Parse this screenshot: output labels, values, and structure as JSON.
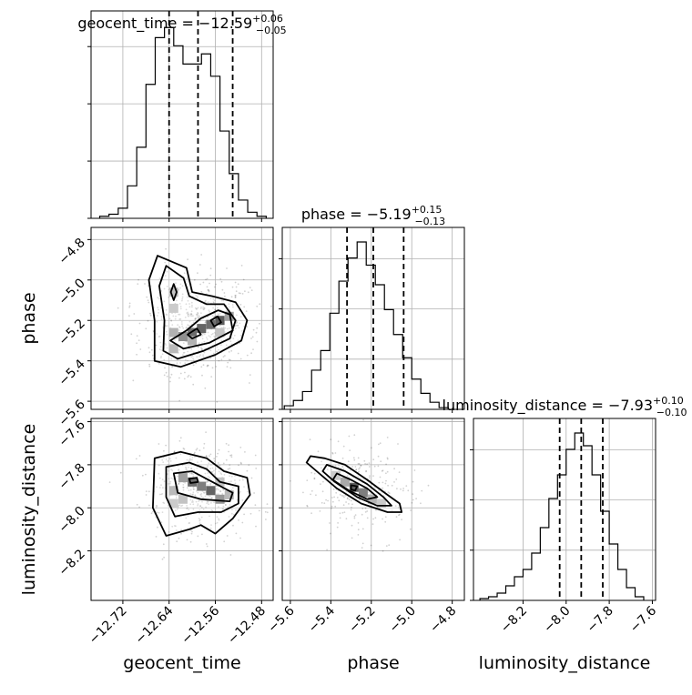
{
  "chart_data": {
    "type": "corner",
    "parameters": [
      "geocent_time",
      "phase",
      "luminosity_distance"
    ],
    "grid": true,
    "panel_titles": {
      "geocent_time": {
        "prefix": "geocent_time = −12.59",
        "sup": "+0.06",
        "sub": "−0.05"
      },
      "phase": {
        "prefix": "phase = −5.19",
        "sup": "+0.15",
        "sub": "−0.13"
      },
      "luminosity_distance": {
        "prefix": "luminosity_distance = −7.93",
        "sup": "+0.10",
        "sub": "−0.10"
      }
    },
    "axis_labels": {
      "x": [
        "geocent_time",
        "phase",
        "luminosity_distance"
      ],
      "y": [
        "phase",
        "luminosity_distance"
      ]
    },
    "axes": {
      "geocent_time": {
        "range": [
          -12.775,
          -12.46
        ],
        "ticks": [
          -12.72,
          -12.64,
          -12.56,
          -12.48
        ],
        "tick_labels": [
          "−12.72",
          "−12.64",
          "−12.56",
          "−12.48"
        ]
      },
      "phase": {
        "range": [
          -5.64,
          -4.74
        ],
        "ticks": [
          -5.6,
          -5.4,
          -5.2,
          -5.0,
          -4.8
        ],
        "tick_labels": [
          "−5.6",
          "−5.4",
          "−5.2",
          "−5.0",
          "−4.8"
        ]
      },
      "luminosity_distance": {
        "range": [
          -8.43,
          -7.585
        ],
        "ticks": [
          -8.2,
          -8.0,
          -7.8,
          -7.6
        ],
        "tick_labels": [
          "−8.2",
          "−8.0",
          "−7.8",
          "−7.6"
        ]
      }
    },
    "histograms": [
      {
        "parameter": "geocent_time",
        "bin_edges": [
          -12.76,
          -12.744,
          -12.728,
          -12.712,
          -12.696,
          -12.68,
          -12.664,
          -12.648,
          -12.632,
          -12.616,
          -12.6,
          -12.584,
          -12.568,
          -12.552,
          -12.536,
          -12.52,
          -12.504,
          -12.488,
          -12.472
        ],
        "counts": [
          1,
          2,
          5,
          16,
          35,
          66,
          89,
          94,
          85,
          76,
          76,
          81,
          70,
          43,
          22,
          9,
          3,
          1
        ],
        "quantiles": [
          -12.64,
          -12.59,
          -12.53
        ]
      },
      {
        "parameter": "phase",
        "bin_edges": [
          -5.63,
          -5.585,
          -5.54,
          -5.495,
          -5.45,
          -5.405,
          -5.36,
          -5.315,
          -5.27,
          -5.225,
          -5.18,
          -5.135,
          -5.09,
          -5.045,
          -5.0,
          -4.955,
          -4.91,
          -4.865,
          -4.82
        ],
        "counts": [
          2,
          5,
          10,
          22,
          33,
          54,
          72,
          85,
          94,
          81,
          70,
          56,
          42,
          29,
          17,
          9,
          4,
          1
        ],
        "quantiles": [
          -5.32,
          -5.19,
          -5.04
        ]
      },
      {
        "parameter": "luminosity_distance",
        "bin_edges": [
          -8.4,
          -8.36,
          -8.32,
          -8.28,
          -8.24,
          -8.2,
          -8.16,
          -8.12,
          -8.08,
          -8.04,
          -8.0,
          -7.96,
          -7.92,
          -7.88,
          -7.84,
          -7.8,
          -7.76,
          -7.72,
          -7.68,
          -7.64
        ],
        "counts": [
          1,
          2,
          4,
          8,
          13,
          17,
          26,
          40,
          56,
          69,
          83,
          92,
          85,
          69,
          49,
          31,
          17,
          7,
          2
        ],
        "quantiles": [
          -8.03,
          -7.93,
          -7.83
        ]
      }
    ],
    "pairs": [
      {
        "x": "geocent_time",
        "y": "phase",
        "density_cells": [
          [
            -12.632,
            -5.06,
            0.35
          ],
          [
            -12.632,
            -5.26,
            0.45
          ],
          [
            -12.632,
            -5.34,
            0.4
          ],
          [
            -12.616,
            -5.28,
            0.65
          ],
          [
            -12.6,
            -5.26,
            0.85
          ],
          [
            -12.584,
            -5.24,
            0.9
          ],
          [
            -12.568,
            -5.22,
            0.85
          ],
          [
            -12.552,
            -5.2,
            0.95
          ],
          [
            -12.536,
            -5.18,
            0.55
          ],
          [
            -12.6,
            -5.3,
            0.45
          ],
          [
            -12.632,
            -5.14,
            0.3
          ],
          [
            -12.552,
            -5.26,
            0.35
          ]
        ],
        "contours": [
          [
            [
              -12.66,
              -4.88
            ],
            [
              -12.61,
              -4.94
            ],
            [
              -12.6,
              -5.06
            ],
            [
              -12.565,
              -5.08
            ],
            [
              -12.525,
              -5.11
            ],
            [
              -12.505,
              -5.2
            ],
            [
              -12.515,
              -5.3
            ],
            [
              -12.56,
              -5.37
            ],
            [
              -12.62,
              -5.43
            ],
            [
              -12.665,
              -5.4
            ],
            [
              -12.665,
              -5.2
            ],
            [
              -12.675,
              -5.0
            ]
          ],
          [
            [
              -12.645,
              -4.93
            ],
            [
              -12.615,
              -4.99
            ],
            [
              -12.605,
              -5.08
            ],
            [
              -12.575,
              -5.12
            ],
            [
              -12.545,
              -5.12
            ],
            [
              -12.525,
              -5.2
            ],
            [
              -12.535,
              -5.29
            ],
            [
              -12.58,
              -5.35
            ],
            [
              -12.625,
              -5.39
            ],
            [
              -12.65,
              -5.35
            ],
            [
              -12.648,
              -5.2
            ],
            [
              -12.657,
              -5.03
            ]
          ],
          [
            [
              -12.61,
              -5.25
            ],
            [
              -12.585,
              -5.19
            ],
            [
              -12.555,
              -5.15
            ],
            [
              -12.535,
              -5.17
            ],
            [
              -12.53,
              -5.25
            ],
            [
              -12.57,
              -5.31
            ],
            [
              -12.615,
              -5.34
            ],
            [
              -12.638,
              -5.3
            ]
          ],
          [
            [
              -12.632,
              -5.02
            ],
            [
              -12.627,
              -5.06
            ],
            [
              -12.632,
              -5.1
            ],
            [
              -12.637,
              -5.06
            ]
          ],
          [
            [
              -12.608,
              -5.27
            ],
            [
              -12.592,
              -5.24
            ],
            [
              -12.585,
              -5.27
            ],
            [
              -12.6,
              -5.29
            ]
          ],
          [
            [
              -12.568,
              -5.2
            ],
            [
              -12.556,
              -5.18
            ],
            [
              -12.55,
              -5.21
            ],
            [
              -12.562,
              -5.23
            ]
          ]
        ]
      },
      {
        "x": "geocent_time",
        "y": "luminosity_distance",
        "density_cells": [
          [
            -12.616,
            -7.86,
            0.55
          ],
          [
            -12.6,
            -7.88,
            0.85
          ],
          [
            -12.584,
            -7.9,
            0.75
          ],
          [
            -12.568,
            -7.92,
            0.9
          ],
          [
            -12.552,
            -7.96,
            0.6
          ],
          [
            -12.632,
            -7.92,
            0.4
          ],
          [
            -12.632,
            -7.98,
            0.3
          ],
          [
            -12.552,
            -7.88,
            0.35
          ],
          [
            -12.536,
            -7.94,
            0.4
          ],
          [
            -12.616,
            -7.96,
            0.35
          ]
        ],
        "contours": [
          [
            [
              -12.665,
              -7.77
            ],
            [
              -12.62,
              -7.74
            ],
            [
              -12.575,
              -7.77
            ],
            [
              -12.545,
              -7.83
            ],
            [
              -12.505,
              -7.86
            ],
            [
              -12.5,
              -7.94
            ],
            [
              -12.53,
              -8.05
            ],
            [
              -12.56,
              -8.12
            ],
            [
              -12.585,
              -8.08
            ],
            [
              -12.605,
              -8.1
            ],
            [
              -12.645,
              -8.13
            ],
            [
              -12.668,
              -8.0
            ]
          ],
          [
            [
              -12.645,
              -7.81
            ],
            [
              -12.605,
              -7.79
            ],
            [
              -12.575,
              -7.82
            ],
            [
              -12.552,
              -7.88
            ],
            [
              -12.52,
              -7.9
            ],
            [
              -12.52,
              -7.98
            ],
            [
              -12.55,
              -8.02
            ],
            [
              -12.59,
              -8.02
            ],
            [
              -12.63,
              -8.04
            ],
            [
              -12.645,
              -7.95
            ]
          ],
          [
            [
              -12.632,
              -7.84
            ],
            [
              -12.6,
              -7.83
            ],
            [
              -12.565,
              -7.88
            ],
            [
              -12.53,
              -7.93
            ],
            [
              -12.535,
              -7.97
            ],
            [
              -12.585,
              -7.96
            ],
            [
              -12.625,
              -7.93
            ]
          ],
          [
            [
              -12.605,
              -7.865
            ],
            [
              -12.592,
              -7.86
            ],
            [
              -12.59,
              -7.88
            ],
            [
              -12.603,
              -7.885
            ]
          ]
        ]
      },
      {
        "x": "phase",
        "y": "luminosity_distance",
        "density_cells": [
          [
            -5.285,
            -7.905,
            0.95
          ],
          [
            -5.24,
            -7.93,
            0.75
          ],
          [
            -5.33,
            -7.88,
            0.5
          ],
          [
            -5.195,
            -7.96,
            0.45
          ],
          [
            -5.15,
            -7.98,
            0.3
          ],
          [
            -5.375,
            -7.85,
            0.3
          ]
        ],
        "contours": [
          [
            [
              -5.5,
              -7.76
            ],
            [
              -5.43,
              -7.77
            ],
            [
              -5.33,
              -7.8
            ],
            [
              -5.22,
              -7.87
            ],
            [
              -5.12,
              -7.94
            ],
            [
              -5.06,
              -7.98
            ],
            [
              -5.05,
              -8.02
            ],
            [
              -5.12,
              -8.02
            ],
            [
              -5.25,
              -7.98
            ],
            [
              -5.37,
              -7.91
            ],
            [
              -5.47,
              -7.83
            ],
            [
              -5.52,
              -7.79
            ]
          ],
          [
            [
              -5.42,
              -7.8
            ],
            [
              -5.33,
              -7.83
            ],
            [
              -5.22,
              -7.89
            ],
            [
              -5.14,
              -7.95
            ],
            [
              -5.1,
              -7.99
            ],
            [
              -5.17,
              -7.99
            ],
            [
              -5.27,
              -7.95
            ],
            [
              -5.38,
              -7.88
            ],
            [
              -5.44,
              -7.83
            ]
          ],
          [
            [
              -5.37,
              -7.84
            ],
            [
              -5.3,
              -7.87
            ],
            [
              -5.22,
              -7.91
            ],
            [
              -5.17,
              -7.95
            ],
            [
              -5.22,
              -7.96
            ],
            [
              -5.31,
              -7.92
            ],
            [
              -5.39,
              -7.87
            ]
          ],
          [
            [
              -5.3,
              -7.895
            ],
            [
              -5.27,
              -7.9
            ],
            [
              -5.28,
              -7.92
            ],
            [
              -5.3,
              -7.915
            ]
          ]
        ]
      }
    ]
  }
}
